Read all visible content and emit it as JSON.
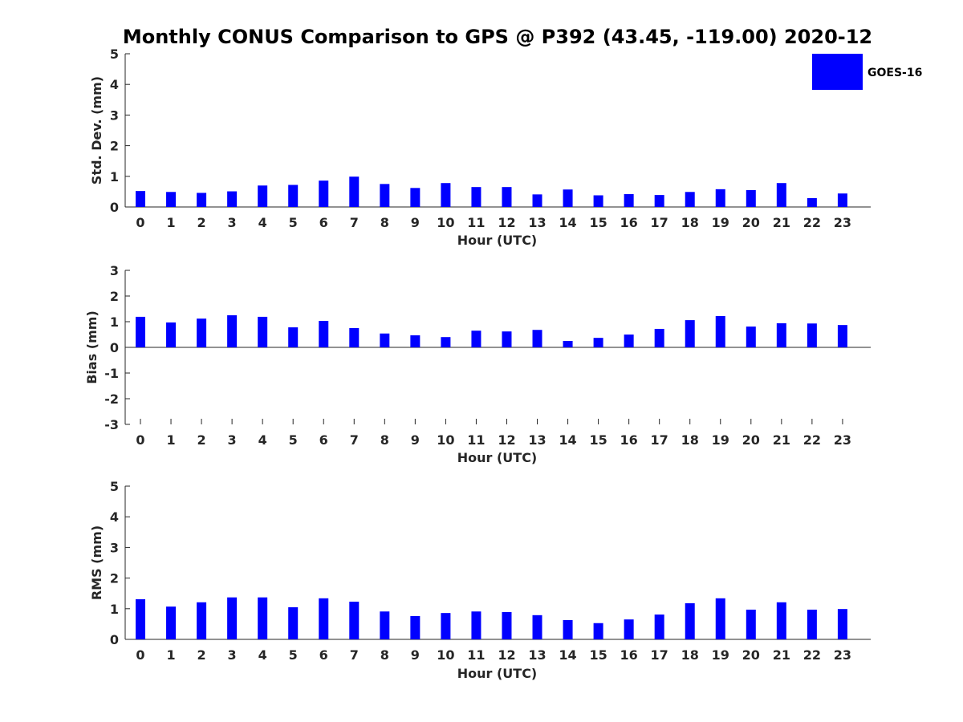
{
  "figure_title": "Monthly CONUS Comparison to GPS @ P392 (43.45, -119.00) 2020-12",
  "legend": {
    "label": "GOES-16",
    "color": "#0000ff"
  },
  "chart_data": [
    {
      "type": "bar",
      "title": "Monthly CONUS Comparison to GPS @ P392 (43.45, -119.00) 2020-12",
      "xlabel": "Hour (UTC)",
      "ylabel": "Std. Dev. (mm)",
      "ylim": [
        0,
        5
      ],
      "yticks": [
        "0",
        "1",
        "2",
        "3",
        "4",
        "5"
      ],
      "categories": [
        "0",
        "1",
        "2",
        "3",
        "4",
        "5",
        "6",
        "7",
        "8",
        "9",
        "10",
        "11",
        "12",
        "13",
        "14",
        "15",
        "16",
        "17",
        "18",
        "19",
        "20",
        "21",
        "22",
        "23"
      ],
      "series": [
        {
          "name": "GOES-16",
          "color": "#0000ff",
          "values": [
            0.52,
            0.49,
            0.46,
            0.51,
            0.7,
            0.72,
            0.86,
            0.99,
            0.75,
            0.62,
            0.78,
            0.65,
            0.65,
            0.41,
            0.57,
            0.38,
            0.42,
            0.39,
            0.49,
            0.58,
            0.55,
            0.78,
            0.29,
            0.44
          ]
        }
      ],
      "grid": false,
      "legend_position": "top-right"
    },
    {
      "type": "bar",
      "xlabel": "Hour (UTC)",
      "ylabel": "Bias (mm)",
      "ylim": [
        -3,
        3
      ],
      "yticks": [
        "-3",
        "-2",
        "-1",
        "0",
        "1",
        "2",
        "3"
      ],
      "categories": [
        "0",
        "1",
        "2",
        "3",
        "4",
        "5",
        "6",
        "7",
        "8",
        "9",
        "10",
        "11",
        "12",
        "13",
        "14",
        "15",
        "16",
        "17",
        "18",
        "19",
        "20",
        "21",
        "22",
        "23"
      ],
      "series": [
        {
          "name": "GOES-16",
          "color": "#0000ff",
          "values": [
            1.19,
            0.97,
            1.12,
            1.25,
            1.19,
            0.78,
            1.03,
            0.75,
            0.54,
            0.47,
            0.4,
            0.65,
            0.62,
            0.68,
            0.25,
            0.37,
            0.5,
            0.72,
            1.06,
            1.22,
            0.81,
            0.94,
            0.93,
            0.87
          ]
        }
      ],
      "grid": false
    },
    {
      "type": "bar",
      "xlabel": "Hour (UTC)",
      "ylabel": "RMS (mm)",
      "ylim": [
        0,
        5
      ],
      "yticks": [
        "0",
        "1",
        "2",
        "3",
        "4",
        "5"
      ],
      "categories": [
        "0",
        "1",
        "2",
        "3",
        "4",
        "5",
        "6",
        "7",
        "8",
        "9",
        "10",
        "11",
        "12",
        "13",
        "14",
        "15",
        "16",
        "17",
        "18",
        "19",
        "20",
        "21",
        "22",
        "23"
      ],
      "series": [
        {
          "name": "GOES-16",
          "color": "#0000ff",
          "values": [
            1.31,
            1.07,
            1.21,
            1.37,
            1.37,
            1.05,
            1.34,
            1.23,
            0.91,
            0.76,
            0.86,
            0.91,
            0.89,
            0.79,
            0.63,
            0.53,
            0.65,
            0.81,
            1.18,
            1.34,
            0.97,
            1.21,
            0.97,
            0.99
          ]
        }
      ],
      "grid": false
    }
  ]
}
